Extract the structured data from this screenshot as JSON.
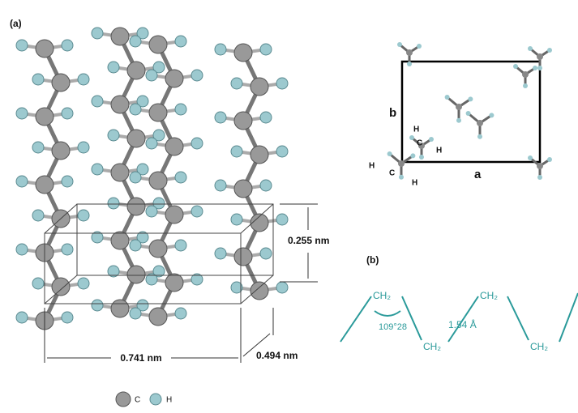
{
  "panel_a": {
    "label": "(a)",
    "dimensions": {
      "height": "0.255 nm",
      "width": "0.741 nm",
      "depth": "0.494 nm"
    },
    "legend": {
      "carbon": "C",
      "hydrogen": "H"
    }
  },
  "unit_cell": {
    "axis_b": "b",
    "axis_a": "a",
    "atom_labels": [
      "H",
      "C",
      "H",
      "H",
      "C",
      "H"
    ]
  },
  "panel_b": {
    "label": "(b)",
    "groups": [
      "CH₂",
      "CH₂",
      "CH₂",
      "CH₂"
    ],
    "bond_angle": "109°28",
    "bond_length": "1.54 Å"
  }
}
